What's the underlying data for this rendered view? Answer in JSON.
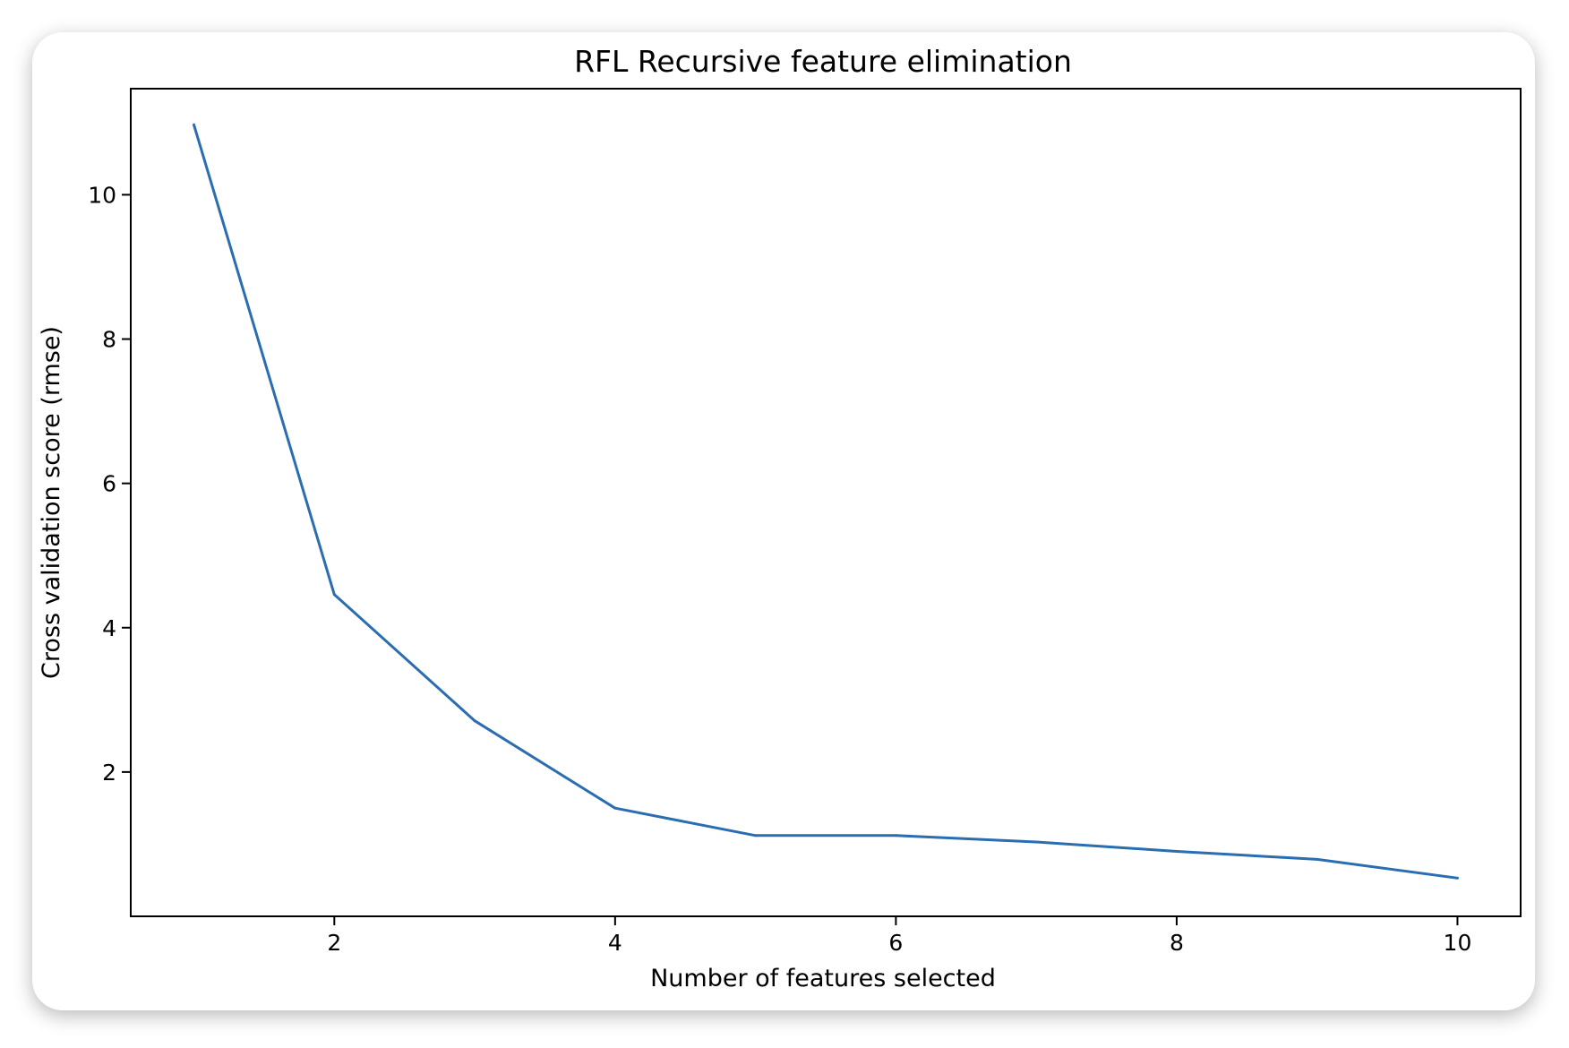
{
  "chart_data": {
    "type": "line",
    "title": "RFL Recursive feature elimination",
    "xlabel": "Number of features selected",
    "ylabel": "Cross validation score (rmse)",
    "x": [
      1,
      2,
      3,
      4,
      5,
      6,
      7,
      8,
      9,
      10
    ],
    "series": [
      {
        "values": [
          10.97,
          4.46,
          2.71,
          1.5,
          1.12,
          1.12,
          1.03,
          0.9,
          0.79,
          0.53
        ],
        "color": "#2a6db0"
      }
    ],
    "xlim": [
      0.55,
      10.45
    ],
    "ylim": [
      0.0,
      11.47
    ],
    "xticks": [
      2,
      4,
      6,
      8,
      10
    ],
    "yticks": [
      2,
      4,
      6,
      8,
      10
    ],
    "grid": false
  }
}
